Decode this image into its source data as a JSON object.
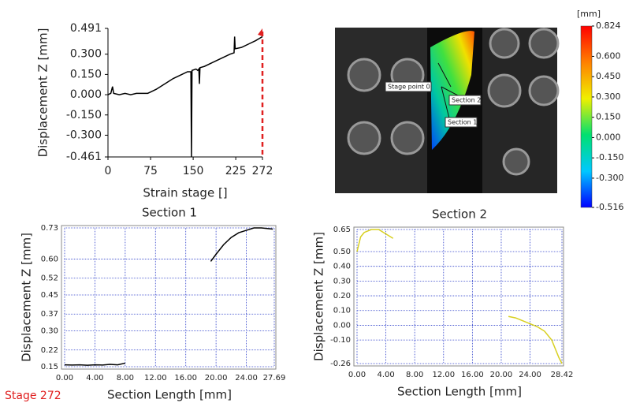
{
  "chart_data": [
    {
      "type": "line",
      "x_label": "Strain stage []",
      "y_label": "Displacement Z [mm]",
      "color": "#000000",
      "grid": false,
      "xlim": [
        0,
        272
      ],
      "xticks": [
        0,
        75,
        150,
        225,
        272
      ],
      "ylim": [
        -0.461,
        0.491
      ],
      "yticks": [
        {
          "value": 0.491,
          "label": "0.491"
        },
        {
          "value": 0.3,
          "label": "0.300"
        },
        {
          "value": 0.15,
          "label": "0.150"
        },
        {
          "value": 0,
          "label": "0.000"
        },
        {
          "value": -0.15,
          "label": "-0.150"
        },
        {
          "value": -0.3,
          "label": "-0.300"
        },
        -0.461
      ],
      "x": [
        0,
        5,
        8,
        10,
        20,
        30,
        40,
        50,
        60,
        70,
        75,
        85,
        100,
        115,
        130,
        140,
        146,
        147,
        148,
        155,
        158,
        160,
        161,
        162,
        170,
        185,
        200,
        215,
        222,
        223,
        224,
        235,
        250,
        260,
        268,
        272
      ],
      "values": [
        0,
        0.01,
        0.06,
        0.01,
        0,
        0.01,
        0,
        0.01,
        0.01,
        0.01,
        0.02,
        0.04,
        0.08,
        0.12,
        0.15,
        0.17,
        0.17,
        -0.461,
        0.18,
        0.19,
        0.18,
        0.19,
        0.08,
        0.2,
        0.21,
        0.24,
        0.27,
        0.3,
        0.31,
        0.43,
        0.34,
        0.35,
        0.38,
        0.4,
        0.42,
        0.43
      ],
      "marker": {
        "x": 272,
        "color": "#e02020"
      }
    },
    {
      "type": "colorbar",
      "unit": "[mm]",
      "clim": [
        -0.516,
        0.824
      ],
      "colors": [
        "#0000ff",
        "#00c8ff",
        "#00e070",
        "#f0f000",
        "#ff8000",
        "#ff0000"
      ],
      "ticks": [
        0.824,
        {
          "value": 0.6,
          "label": "0.600"
        },
        {
          "value": 0.45,
          "label": "0.450"
        },
        {
          "value": 0.3,
          "label": "0.300"
        },
        {
          "value": 0.15,
          "label": "0.150"
        },
        {
          "value": 0,
          "label": "0.000"
        },
        {
          "value": -0.15,
          "label": "-0.150"
        },
        {
          "value": -0.3,
          "label": "-0.300"
        },
        -0.516
      ]
    },
    {
      "type": "line",
      "title": "Section 1",
      "x_label": "Section Length [mm]",
      "y_label": "Displacement Z [mm]",
      "color": "#000000",
      "grid": true,
      "xlim": [
        0,
        27.69
      ],
      "xticks": [
        {
          "value": 0,
          "label": "0.00"
        },
        {
          "value": 4,
          "label": "4.00"
        },
        {
          "value": 8,
          "label": "8.00"
        },
        {
          "value": 12,
          "label": "12.00"
        },
        {
          "value": 16,
          "label": "16.00"
        },
        {
          "value": 20,
          "label": "20.00"
        },
        {
          "value": 24,
          "label": "24.00"
        },
        27.69
      ],
      "ylim": [
        0.15,
        0.73
      ],
      "yticks": [
        0.73,
        {
          "value": 0.6,
          "label": "0.60"
        },
        0.52,
        0.45,
        0.37,
        {
          "value": 0.3,
          "label": "0.30"
        },
        0.22,
        0.15
      ],
      "x": [
        0,
        1,
        2,
        3,
        4,
        5,
        6,
        7,
        8,
        null,
        19.3,
        20,
        21,
        22,
        23,
        24,
        25,
        26,
        27.5
      ],
      "values": [
        0.158,
        0.157,
        0.158,
        0.156,
        0.158,
        0.157,
        0.16,
        0.158,
        0.165,
        null,
        0.59,
        0.62,
        0.66,
        0.69,
        0.71,
        0.72,
        0.73,
        0.73,
        0.725
      ]
    },
    {
      "type": "line",
      "title": "Section 2",
      "x_label": "Section Length [mm]",
      "y_label": "Displacement Z [mm]",
      "color": "#d8d020",
      "grid": true,
      "xlim": [
        0,
        28.42
      ],
      "xticks": [
        {
          "value": 0,
          "label": "0.00"
        },
        {
          "value": 4,
          "label": "4.00"
        },
        {
          "value": 8,
          "label": "8.00"
        },
        {
          "value": 12,
          "label": "12.00"
        },
        {
          "value": 16,
          "label": "16.00"
        },
        {
          "value": 20,
          "label": "20.00"
        },
        {
          "value": 24,
          "label": "24.00"
        },
        28.42
      ],
      "ylim": [
        -0.26,
        0.65
      ],
      "yticks": [
        0.65,
        {
          "value": 0.5,
          "label": "0.50"
        },
        {
          "value": 0.4,
          "label": "0.40"
        },
        {
          "value": 0.3,
          "label": "0.30"
        },
        {
          "value": 0.2,
          "label": "0.20"
        },
        {
          "value": 0.1,
          "label": "0.10"
        },
        {
          "value": 0,
          "label": "0.00"
        },
        {
          "value": -0.1,
          "label": "-0.10"
        },
        -0.26
      ],
      "x": [
        0,
        0.5,
        1,
        2,
        3,
        4,
        5,
        null,
        21,
        22,
        23,
        24,
        25,
        26,
        27,
        28,
        28.42
      ],
      "values": [
        0.5,
        0.6,
        0.63,
        0.65,
        0.65,
        0.62,
        0.59,
        null,
        0.06,
        0.05,
        0.03,
        0.01,
        -0.01,
        -0.04,
        -0.1,
        -0.22,
        -0.26
      ]
    }
  ],
  "image": {
    "labels": [
      "Stage point 0",
      "Section 2",
      "Section 1"
    ]
  },
  "stage_label": "Stage 272"
}
